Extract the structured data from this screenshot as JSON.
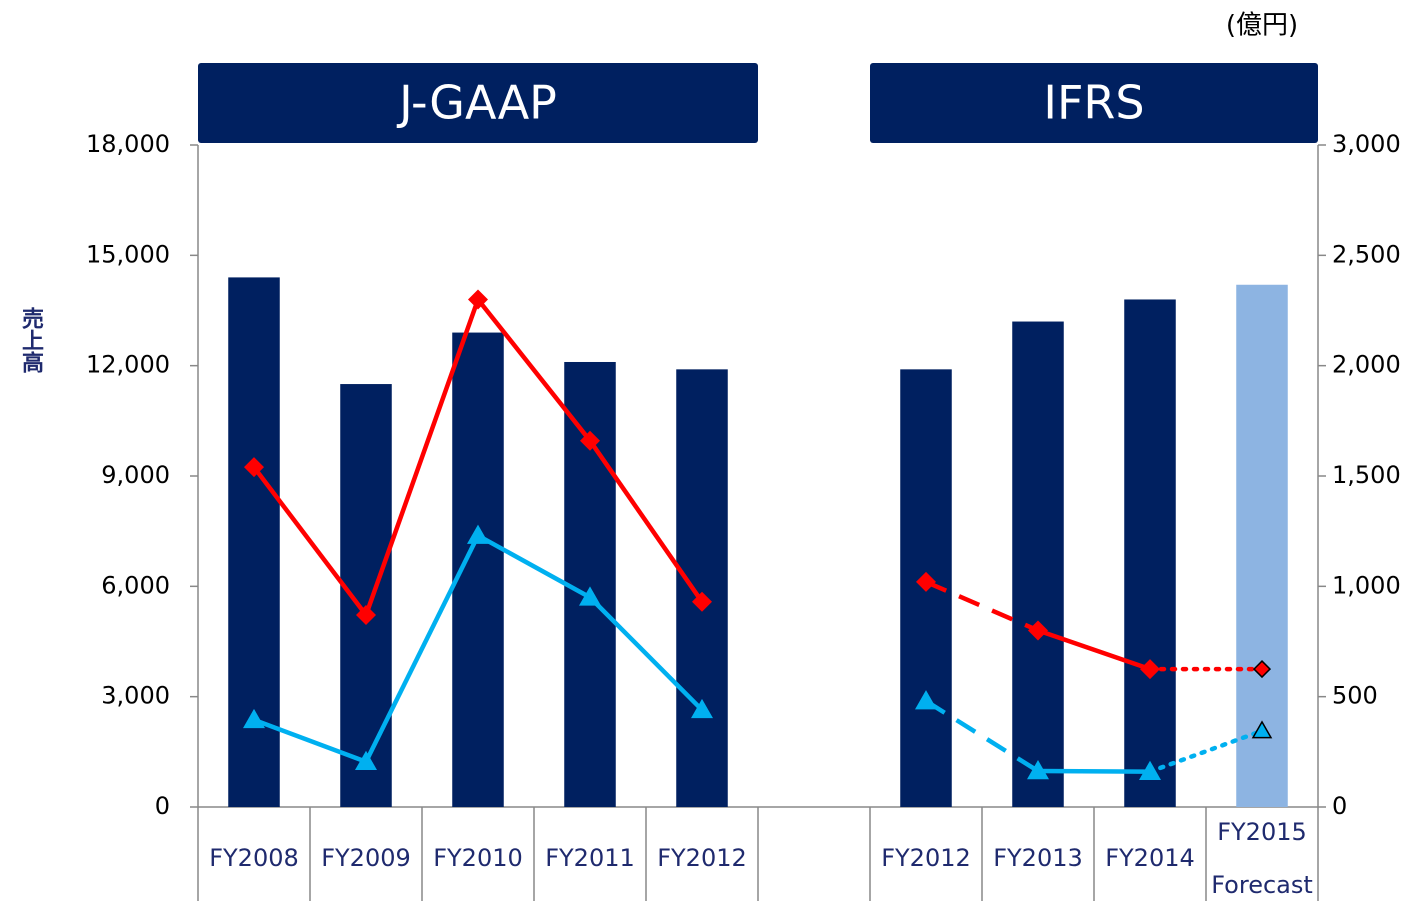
{
  "chart_data": {
    "type": "bar",
    "unit_label": "(億円)",
    "y_axis_label": "売上高",
    "groups": [
      {
        "label": "J-GAAP",
        "categories": [
          0,
          4
        ]
      },
      {
        "label": "IFRS",
        "categories": [
          6,
          9
        ]
      }
    ],
    "categories": [
      "FY2008",
      "FY2009",
      "FY2010",
      "FY2011",
      "FY2012",
      null,
      "FY2012",
      "FY2013",
      "FY2014",
      [
        "FY2015",
        "Forecast"
      ]
    ],
    "bars": {
      "values": [
        14400,
        11500,
        12900,
        12100,
        11900,
        null,
        11900,
        13200,
        13800,
        14200
      ],
      "colors": [
        "#002060",
        "#002060",
        "#002060",
        "#002060",
        "#002060",
        null,
        "#002060",
        "#002060",
        "#002060",
        "#8db4e2"
      ]
    },
    "series": [
      {
        "type": "line",
        "axis": "y2",
        "color": "#ff0000",
        "marker": "diamond",
        "values": [
          1540,
          870,
          2300,
          1660,
          930,
          null,
          1020,
          800,
          625,
          625
        ],
        "segment_styles": [
          null,
          "solid",
          "solid",
          "solid",
          "solid",
          null,
          null,
          "dashed",
          "solid",
          "dotted"
        ],
        "edgecolors": [
          null,
          null,
          null,
          null,
          null,
          null,
          null,
          null,
          null,
          "#000000"
        ]
      },
      {
        "type": "line",
        "axis": "y2",
        "color": "#00b0f0",
        "marker": "triangle",
        "values": [
          395,
          205,
          1230,
          950,
          440,
          null,
          480,
          163,
          160,
          345
        ],
        "segment_styles": [
          null,
          "solid",
          "solid",
          "solid",
          "solid",
          null,
          null,
          "dashed",
          "solid",
          "dotted"
        ],
        "edgecolors": [
          null,
          null,
          null,
          null,
          null,
          null,
          null,
          null,
          null,
          "#000000"
        ]
      }
    ],
    "ylim": [
      0,
      18000
    ],
    "yticks": [
      0,
      {
        "value": 3000,
        "label": "3,000"
      },
      {
        "value": 6000,
        "label": "6,000"
      },
      {
        "value": 9000,
        "label": "9,000"
      },
      {
        "value": 12000,
        "label": "12,000"
      },
      {
        "value": 15000,
        "label": "15,000"
      },
      {
        "value": 18000,
        "label": "18,000"
      }
    ],
    "y2lim": [
      0,
      3000
    ],
    "y2ticks": [
      0,
      500,
      {
        "value": 1000,
        "label": "1,000"
      },
      {
        "value": 1500,
        "label": "1,500"
      },
      {
        "value": 2000,
        "label": "2,000"
      },
      {
        "value": 2500,
        "label": "2,500"
      },
      {
        "value": 3000,
        "label": "3,000"
      }
    ],
    "grid": false
  }
}
